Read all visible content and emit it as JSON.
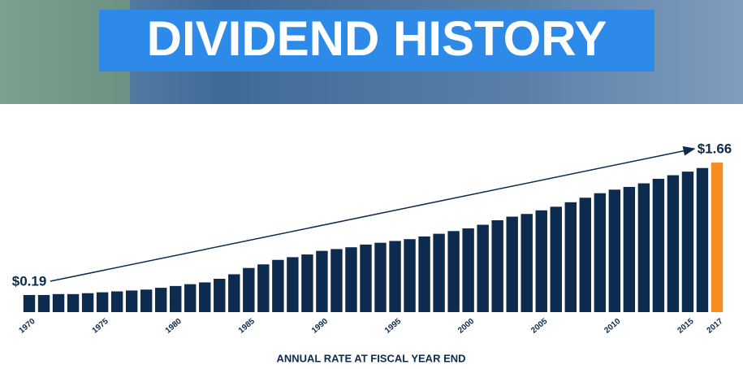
{
  "chart_data": {
    "type": "bar",
    "title": "DIVIDEND HISTORY",
    "x_label": "ANNUAL RATE AT FISCAL YEAR END",
    "categories": [
      "1970",
      null,
      null,
      null,
      null,
      "1975",
      null,
      null,
      null,
      null,
      "1980",
      null,
      null,
      null,
      null,
      "1985",
      null,
      null,
      null,
      null,
      "1990",
      null,
      null,
      null,
      null,
      "1995",
      null,
      null,
      null,
      null,
      "2000",
      null,
      null,
      null,
      null,
      "2005",
      null,
      null,
      null,
      null,
      "2010",
      null,
      null,
      null,
      null,
      "2015",
      null,
      "2017"
    ],
    "values": [
      0.19,
      0.19,
      0.2,
      0.2,
      0.21,
      0.22,
      0.23,
      0.24,
      0.25,
      0.27,
      0.29,
      0.31,
      0.33,
      0.37,
      0.42,
      0.49,
      0.53,
      0.58,
      0.61,
      0.64,
      0.68,
      0.7,
      0.72,
      0.75,
      0.77,
      0.79,
      0.81,
      0.84,
      0.87,
      0.9,
      0.93,
      0.97,
      1.02,
      1.06,
      1.09,
      1.13,
      1.17,
      1.22,
      1.27,
      1.32,
      1.36,
      1.39,
      1.43,
      1.48,
      1.52,
      1.56,
      1.6,
      1.66
    ],
    "value_labels": [
      "$0.19",
      null,
      null,
      null,
      null,
      null,
      null,
      null,
      null,
      null,
      null,
      null,
      null,
      null,
      null,
      null,
      null,
      null,
      null,
      null,
      null,
      null,
      null,
      null,
      null,
      null,
      null,
      null,
      null,
      null,
      null,
      null,
      null,
      null,
      null,
      null,
      null,
      null,
      null,
      null,
      null,
      null,
      null,
      null,
      null,
      null,
      null,
      "$1.66"
    ],
    "colors": [
      "#0c2b4e",
      "#0c2b4e",
      "#0c2b4e",
      "#0c2b4e",
      "#0c2b4e",
      "#0c2b4e",
      "#0c2b4e",
      "#0c2b4e",
      "#0c2b4e",
      "#0c2b4e",
      "#0c2b4e",
      "#0c2b4e",
      "#0c2b4e",
      "#0c2b4e",
      "#0c2b4e",
      "#0c2b4e",
      "#0c2b4e",
      "#0c2b4e",
      "#0c2b4e",
      "#0c2b4e",
      "#0c2b4e",
      "#0c2b4e",
      "#0c2b4e",
      "#0c2b4e",
      "#0c2b4e",
      "#0c2b4e",
      "#0c2b4e",
      "#0c2b4e",
      "#0c2b4e",
      "#0c2b4e",
      "#0c2b4e",
      "#0c2b4e",
      "#0c2b4e",
      "#0c2b4e",
      "#0c2b4e",
      "#0c2b4e",
      "#0c2b4e",
      "#0c2b4e",
      "#0c2b4e",
      "#0c2b4e",
      "#0c2b4e",
      "#0c2b4e",
      "#0c2b4e",
      "#0c2b4e",
      "#0c2b4e",
      "#0c2b4e",
      "#0c2b4e",
      "#f68b1f"
    ]
  }
}
